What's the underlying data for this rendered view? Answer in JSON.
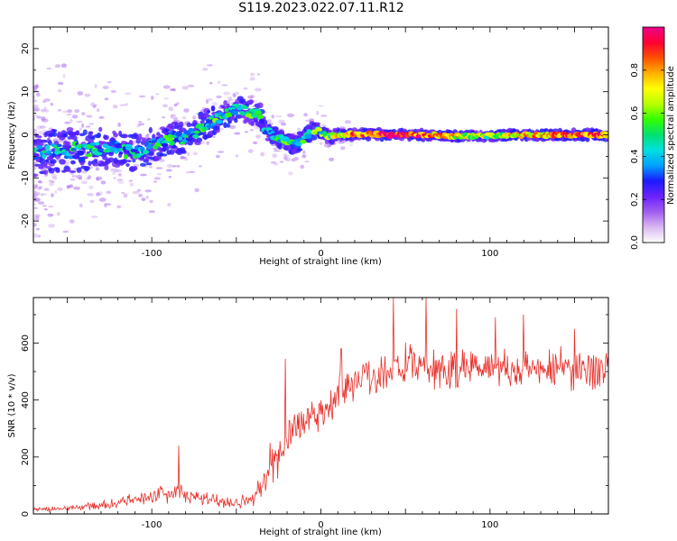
{
  "title": "S119.2023.022.07.11.R12",
  "colors": {
    "snr_line": "#e8302a",
    "colormap": [
      "#ffffff",
      "#d9b8f0",
      "#a15df0",
      "#6a22ff",
      "#1b1bff",
      "#00a0ff",
      "#00e0e0",
      "#00e070",
      "#33ff00",
      "#b8ff00",
      "#ffff00",
      "#ffb000",
      "#ff5000",
      "#ff0033",
      "#ee0088"
    ]
  },
  "chart_data": [
    {
      "type": "heatmap",
      "xlabel": "Height of straight line (km)",
      "ylabel": "Frequency (Hz)",
      "xlim": [
        -170,
        170
      ],
      "ylim": [
        -25,
        25
      ],
      "x_ticks": [
        -100,
        0,
        100
      ],
      "y_ticks": [
        -20,
        -10,
        0,
        10,
        20
      ],
      "grid": false,
      "colorbar": {
        "label": "Normalized spectral amplitude",
        "range": [
          0,
          1
        ],
        "ticks": [
          0.0,
          0.2,
          0.4,
          0.6,
          0.8
        ]
      },
      "ridge": {
        "x": [
          -170,
          -160,
          -150,
          -140,
          -130,
          -120,
          -110,
          -100,
          -95,
          -90,
          -85,
          -80,
          -75,
          -70,
          -65,
          -60,
          -55,
          -50,
          -45,
          -40,
          -36,
          -33,
          -30,
          -27,
          -24,
          -21,
          -18,
          -15,
          -12,
          -9,
          -6,
          -3,
          0,
          3,
          6,
          10,
          20,
          40,
          60,
          80,
          100,
          120,
          140,
          160,
          170
        ],
        "freq": [
          -5,
          -4,
          -3.5,
          -4,
          -3,
          -3.5,
          -4,
          -2.5,
          -1.5,
          -1,
          -0.5,
          -1,
          0.5,
          2,
          3,
          4,
          5,
          6,
          5.5,
          5,
          4.5,
          1,
          0.5,
          -0.5,
          -1,
          -1.5,
          -2,
          -2.2,
          -1.5,
          -0.5,
          0.8,
          1.2,
          0.5,
          -0.3,
          -0.5,
          0,
          0.2,
          0,
          0,
          -0.3,
          -0.2,
          0,
          -0.1,
          0,
          0
        ],
        "amplitude": [
          0.3,
          0.35,
          0.4,
          0.4,
          0.45,
          0.4,
          0.45,
          0.45,
          0.4,
          0.45,
          0.4,
          0.45,
          0.4,
          0.45,
          0.45,
          0.5,
          0.5,
          0.45,
          0.5,
          0.45,
          0.4,
          0.4,
          0.4,
          0.45,
          0.45,
          0.45,
          0.45,
          0.45,
          0.45,
          0.45,
          0.5,
          0.5,
          0.5,
          0.5,
          0.55,
          0.65,
          0.8,
          0.95,
          0.85,
          0.7,
          0.6,
          0.7,
          0.85,
          0.85,
          0.8
        ],
        "spread": [
          5,
          5,
          5,
          5,
          4.5,
          4.5,
          4,
          4,
          3.5,
          3.5,
          3.5,
          3.5,
          3.5,
          3.5,
          3,
          3,
          3,
          3,
          3,
          2.5,
          2.5,
          2,
          2,
          2,
          2,
          2,
          2,
          2,
          2,
          2,
          2,
          1.8,
          1.5,
          1.5,
          1.5,
          1.3,
          1.2,
          1.1,
          1.1,
          1.1,
          1.1,
          1.1,
          1.1,
          1.1,
          1.1
        ]
      }
    },
    {
      "type": "line",
      "xlabel": "Height of straight line (km)",
      "ylabel": "SNR (10 * v/v)",
      "xlim": [
        -170,
        170
      ],
      "ylim": [
        0,
        760
      ],
      "x_ticks": [
        -100,
        0,
        100
      ],
      "y_ticks": [
        0,
        200,
        400,
        600
      ],
      "grid": false,
      "series": [
        {
          "envelope_x": [
            -170,
            -150,
            -130,
            -110,
            -95,
            -85,
            -80,
            -70,
            -60,
            -50,
            -40,
            -35,
            -30,
            -25,
            -22,
            -20,
            -18,
            -15,
            -10,
            -5,
            0,
            5,
            10,
            15,
            20,
            25,
            30,
            35,
            40,
            50,
            60,
            70,
            80,
            90,
            100,
            110,
            120,
            130,
            140,
            150,
            160,
            170
          ],
          "envelope_y": [
            15,
            20,
            30,
            50,
            70,
            80,
            60,
            55,
            45,
            40,
            60,
            90,
            150,
            190,
            230,
            250,
            290,
            300,
            330,
            340,
            360,
            380,
            420,
            450,
            470,
            480,
            490,
            495,
            505,
            520,
            510,
            505,
            510,
            515,
            520,
            515,
            510,
            505,
            515,
            510,
            505,
            515
          ],
          "noise_amplitude": [
            6,
            8,
            12,
            18,
            25,
            35,
            30,
            25,
            22,
            20,
            28,
            40,
            60,
            75,
            80,
            80,
            75,
            70,
            70,
            65,
            60,
            60,
            65,
            65,
            65,
            65,
            65,
            65,
            65,
            65,
            65,
            65,
            65,
            65,
            65,
            65,
            65,
            65,
            65,
            65,
            65,
            65
          ],
          "spikes": [
            [
              -84,
              240
            ],
            [
              -21,
              545
            ],
            [
              -19,
              330
            ],
            [
              -30,
              250
            ],
            [
              12,
              580
            ],
            [
              43,
              760
            ],
            [
              62,
              760
            ],
            [
              80,
              720
            ],
            [
              103,
              690
            ],
            [
              120,
              700
            ],
            [
              150,
              650
            ]
          ]
        }
      ]
    }
  ]
}
